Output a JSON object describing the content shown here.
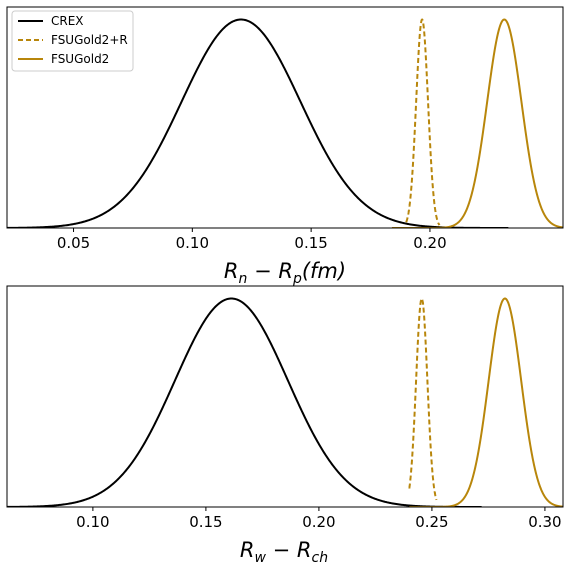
{
  "chart_data": [
    {
      "type": "line",
      "xlabel": "R_n − R_p (fm)",
      "xlabel_parts": {
        "r1": "R",
        "s1": "n",
        "minus": " − ",
        "r2": "R",
        "s2": "p",
        "unit": "(fm)"
      },
      "xlim": [
        0.022,
        0.256
      ],
      "xticks": [
        0.05,
        0.1,
        0.15,
        0.2
      ],
      "xtick_labels": [
        "0.05",
        "0.10",
        "0.15",
        "0.20"
      ],
      "ylim": [
        0,
        1.06
      ],
      "yticks_visible": false,
      "legend": {
        "placement": "top-left",
        "entries": [
          "CREX",
          "FSUGold2+R",
          "FSUGold2"
        ]
      },
      "series": [
        {
          "name": "CREX",
          "style": "solid",
          "color": "#000000",
          "mean": 0.1205,
          "sigma": 0.025,
          "x_range": [
            0.013,
            0.233
          ]
        },
        {
          "name": "FSUGold2+R",
          "style": "dashed",
          "color": "#b8860b",
          "mean": 0.1967,
          "sigma": 0.0025,
          "x_range": [
            0.19,
            0.204
          ]
        },
        {
          "name": "FSUGold2",
          "style": "solid",
          "color": "#b8860b",
          "mean": 0.2313,
          "sigma": 0.0072,
          "x_range": [
            0.184,
            0.262
          ]
        }
      ]
    },
    {
      "type": "line",
      "xlabel": "R_w − R_ch",
      "xlabel_parts": {
        "r1": "R",
        "s1": "w",
        "minus": " − ",
        "r2": "R",
        "s2": "ch",
        "unit": ""
      },
      "xlim": [
        0.062,
        0.308
      ],
      "xticks": [
        0.1,
        0.15,
        0.2,
        0.25,
        0.3
      ],
      "xtick_labels": [
        "0.10",
        "0.15",
        "0.20",
        "0.25",
        "0.30"
      ],
      "ylim": [
        0,
        1.06
      ],
      "yticks_visible": false,
      "legend": null,
      "series": [
        {
          "name": "CREX",
          "style": "solid",
          "color": "#000000",
          "mean": 0.1613,
          "sigma": 0.025,
          "x_range": [
            0.052,
            0.272
          ]
        },
        {
          "name": "FSUGold2+R",
          "style": "dashed",
          "color": "#b8860b",
          "mean": 0.2455,
          "sigma": 0.0025,
          "x_range": [
            0.24,
            0.252
          ]
        },
        {
          "name": "FSUGold2",
          "style": "solid",
          "color": "#b8860b",
          "mean": 0.2823,
          "sigma": 0.0072,
          "x_range": [
            0.24,
            0.318
          ]
        }
      ]
    }
  ]
}
